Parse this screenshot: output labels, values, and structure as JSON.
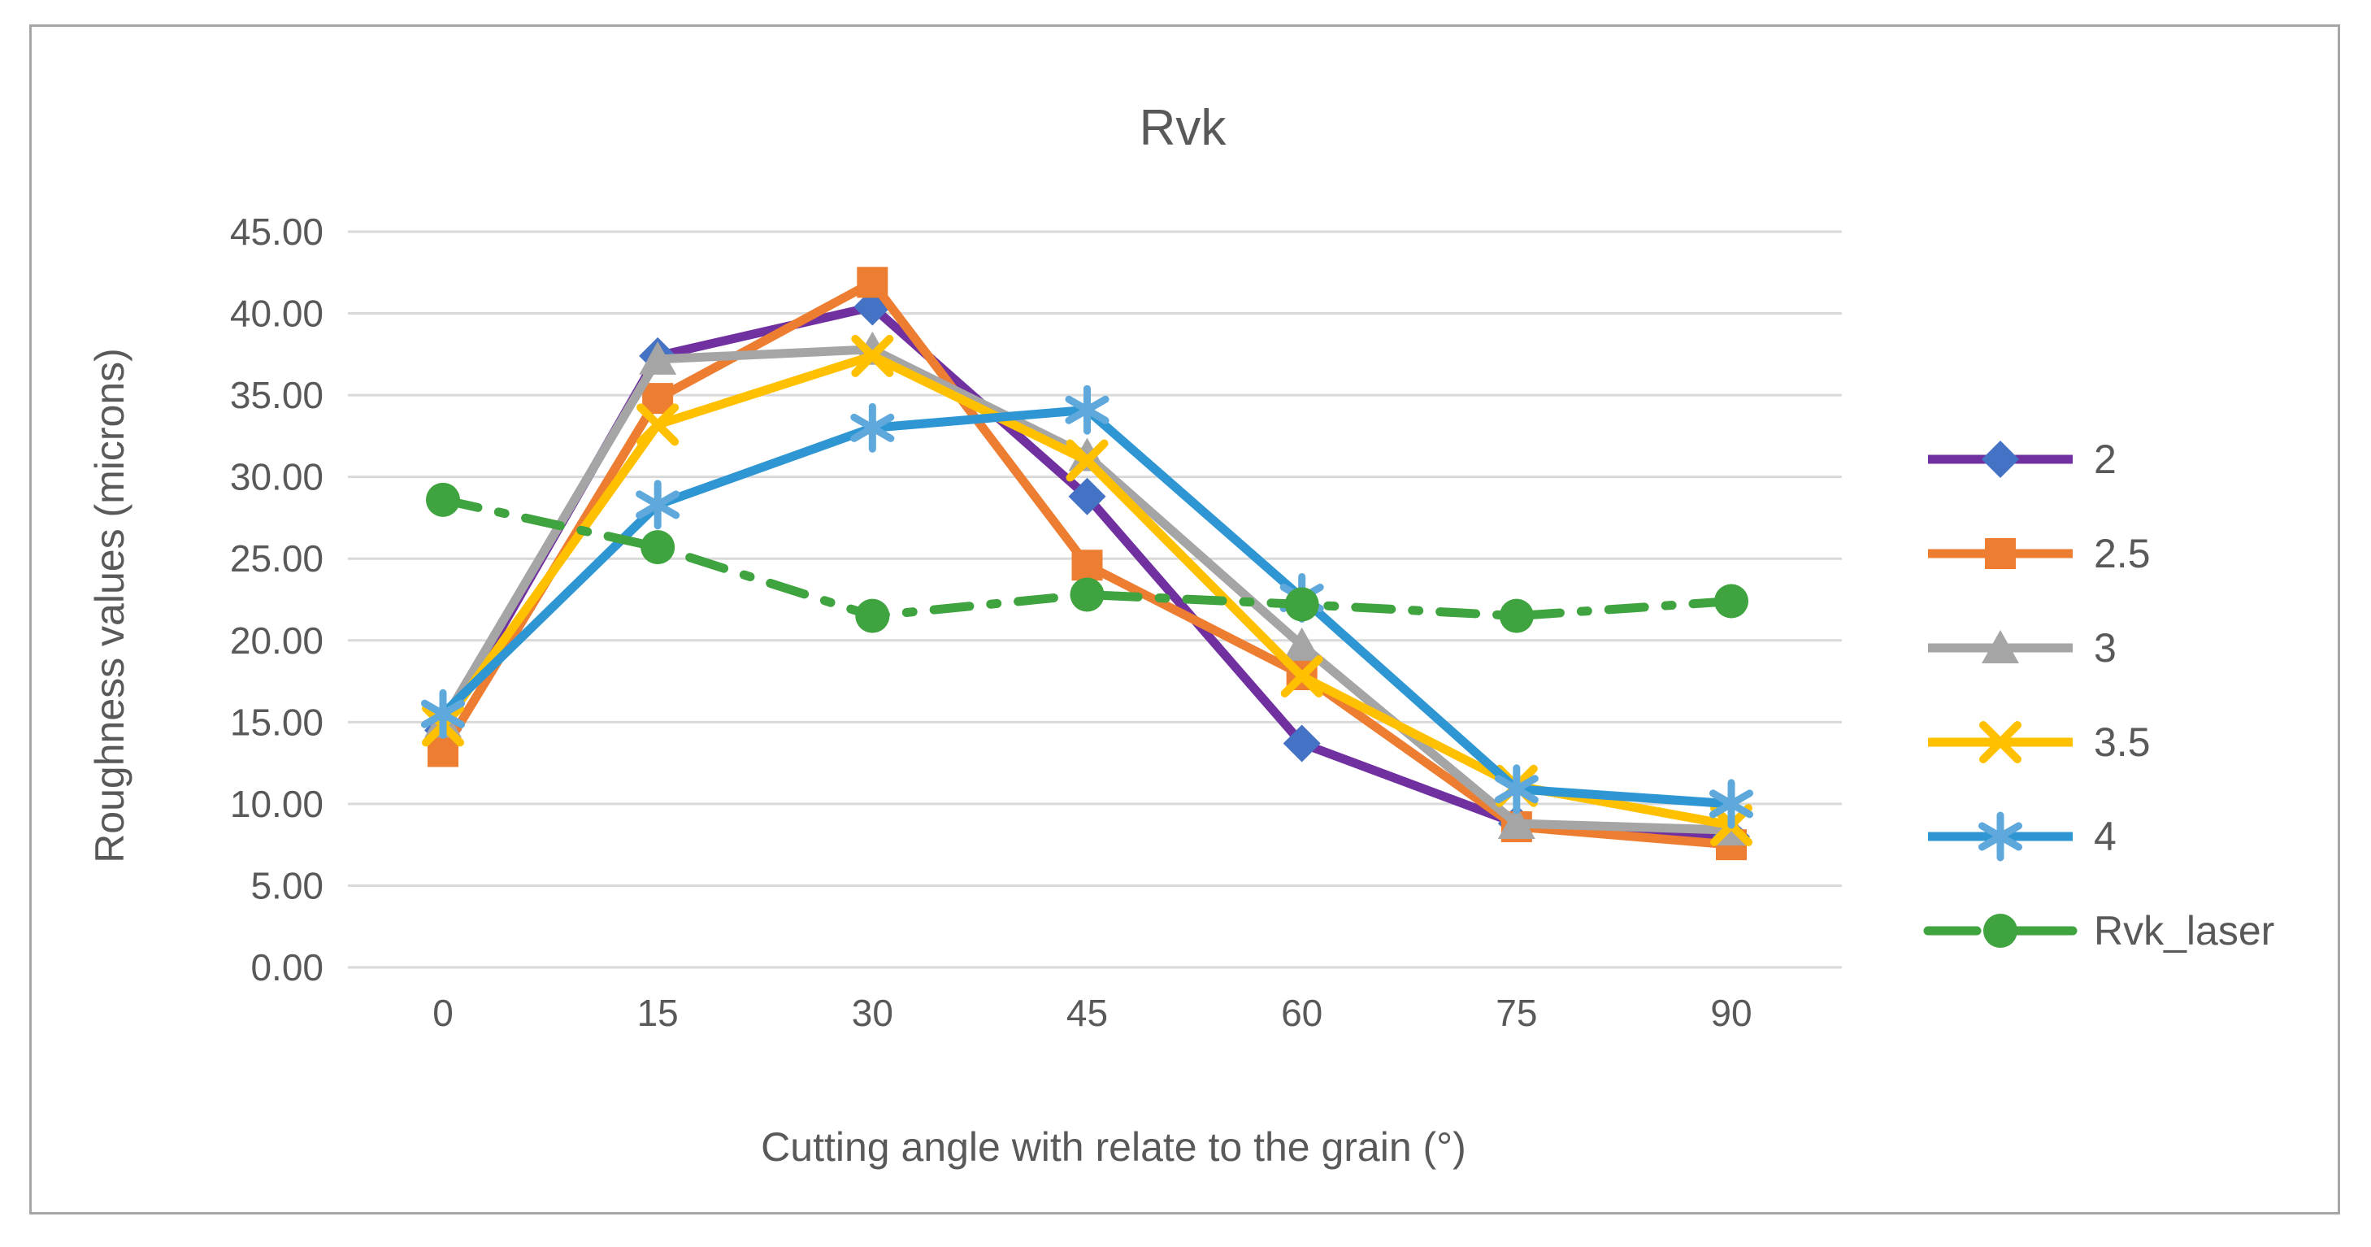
{
  "chart_data": {
    "type": "line",
    "title": "Rvk",
    "xlabel": "Cutting angle with relate to the grain (°)",
    "ylabel": "Roughness values (microns)",
    "x_tick_labels": [
      "0",
      "15",
      "30",
      "45",
      "60",
      "75",
      "90"
    ],
    "x": [
      0,
      15,
      30,
      45,
      60,
      75,
      90
    ],
    "ylim": [
      0,
      45
    ],
    "ytick_step": 5,
    "y_tick_labels": [
      "0.00",
      "5.00",
      "10.00",
      "15.00",
      "20.00",
      "25.00",
      "30.00",
      "35.00",
      "40.00",
      "45.00"
    ],
    "grid": true,
    "legend_position": "right",
    "colors": {
      "text": "#595959",
      "gridline": "#d9d9d9",
      "frame_border": "#a6a6a6",
      "background": "#ffffff"
    },
    "series": [
      {
        "name": "2",
        "color": "#7030A0",
        "marker": "diamond",
        "marker_color": "#4472C4",
        "dash": "solid",
        "values": [
          14.5,
          37.4,
          40.4,
          28.8,
          13.7,
          8.8,
          8.0
        ]
      },
      {
        "name": "2.5",
        "color": "#ED7D31",
        "marker": "square",
        "marker_color": "#ED7D31",
        "dash": "solid",
        "values": [
          13.2,
          34.8,
          41.9,
          24.6,
          17.9,
          8.6,
          7.5
        ]
      },
      {
        "name": "3",
        "color": "#A5A5A5",
        "marker": "triangle",
        "marker_color": "#A5A5A5",
        "dash": "solid",
        "values": [
          15.0,
          37.2,
          37.8,
          31.3,
          19.7,
          8.8,
          8.4
        ]
      },
      {
        "name": "3.5",
        "color": "#FFC000",
        "marker": "x",
        "marker_color": "#FFC000",
        "dash": "solid",
        "values": [
          14.8,
          33.2,
          37.4,
          31.0,
          17.8,
          11.1,
          8.7
        ]
      },
      {
        "name": "4",
        "color": "#2E96D3",
        "marker": "asterisk",
        "marker_color": "#5FA8DC",
        "dash": "solid",
        "values": [
          15.5,
          28.3,
          33.0,
          34.1,
          22.6,
          10.9,
          10.0
        ]
      },
      {
        "name": "Rvk_laser",
        "color": "#3FA33F",
        "marker": "circle",
        "marker_color": "#3FA33F",
        "dash": "dashdot",
        "values": [
          28.6,
          25.7,
          21.5,
          22.8,
          22.2,
          21.5,
          22.4
        ]
      }
    ]
  }
}
